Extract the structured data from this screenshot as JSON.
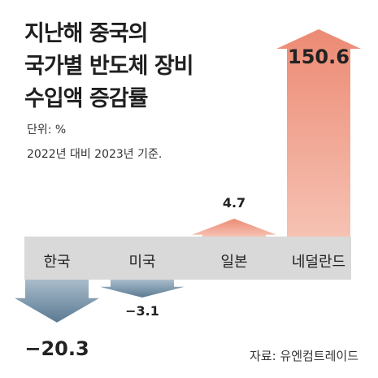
{
  "header": {
    "title_lines": [
      "지난해 중국의",
      "국가별 반도체 장비",
      "수입액 증감률"
    ],
    "unit": "단위: %",
    "basis": "2022년 대비 2023년 기준."
  },
  "source": "자료: 유엔컴트레이드",
  "colors": {
    "positive": "#ec8a74",
    "positive_light": "#f6c2b3",
    "negative": "#5b7a93",
    "negative_light": "#a9bccb",
    "baseline_band": "#d9d9d9"
  },
  "chart_data": {
    "type": "bar",
    "title": "지난해 중국의 국가별 반도체 장비 수입액 증감률",
    "ylabel": "단위: %",
    "categories": [
      "한국",
      "미국",
      "일본",
      "네덜란드"
    ],
    "values": [
      -20.3,
      -3.1,
      4.7,
      150.6
    ],
    "value_labels": [
      "−20.3",
      "−3.1",
      "4.7",
      "150.6"
    ]
  }
}
